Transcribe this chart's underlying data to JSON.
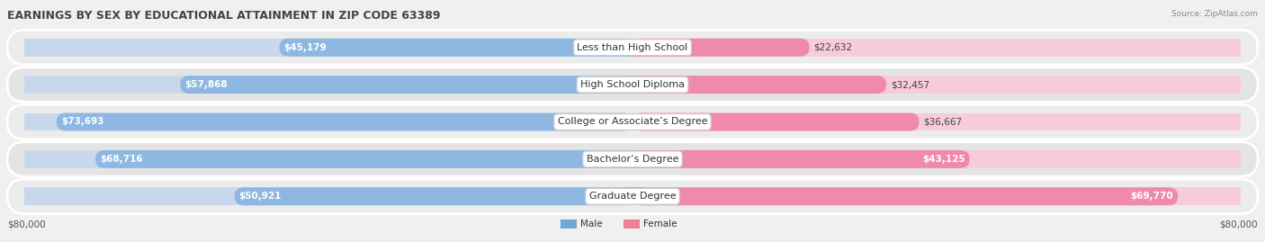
{
  "title": "EARNINGS BY SEX BY EDUCATIONAL ATTAINMENT IN ZIP CODE 63389",
  "source": "Source: ZipAtlas.com",
  "categories": [
    "Less than High School",
    "High School Diploma",
    "College or Associate’s Degree",
    "Bachelor’s Degree",
    "Graduate Degree"
  ],
  "male_values": [
    45179,
    57868,
    73693,
    68716,
    50921
  ],
  "female_values": [
    22632,
    32457,
    36667,
    43125,
    69770
  ],
  "max_value": 80000,
  "male_color": "#8eb8e2",
  "female_color": "#f08aaa",
  "male_label": "Male",
  "female_label": "Female",
  "male_legend_color": "#6fa8d4",
  "female_legend_color": "#f08098",
  "axis_label_left": "$80,000",
  "axis_label_right": "$80,000",
  "row_bg_color": "#e8e8e8",
  "bar_bg_left": "#c8d8ec",
  "bar_bg_right": "#f5ccd8",
  "title_fontsize": 9,
  "value_fontsize": 7.5,
  "category_fontsize": 8
}
